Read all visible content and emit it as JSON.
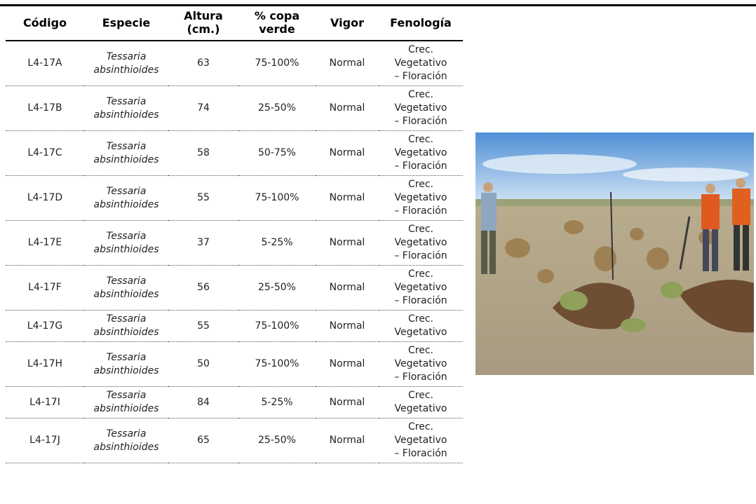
{
  "table": {
    "header": [
      "Código",
      "Especie",
      "Altura\n(cm.)",
      "% copa\nverde",
      "Vigor",
      "Fenología"
    ],
    "rows": [
      [
        "L4-17A",
        "Tessaria\nabsinthioides",
        "63",
        "75-100%",
        "Normal",
        "Crec.\nVegetativo\n– Floración"
      ],
      [
        "L4-17B",
        "Tessaria\nabsinthioides",
        "74",
        "25-50%",
        "Normal",
        "Crec.\nVegetativo\n– Floración"
      ],
      [
        "L4-17C",
        "Tessaria\nabsinthioides",
        "58",
        "50-75%",
        "Normal",
        "Crec.\nVegetativo\n– Floración"
      ],
      [
        "L4-17D",
        "Tessaria\nabsinthioides",
        "55",
        "75-100%",
        "Normal",
        "Crec.\nVegetativo\n– Floración"
      ],
      [
        "L4-17E",
        "Tessaria\nabsinthioides",
        "37",
        "5-25%",
        "Normal",
        "Crec.\nVegetativo\n– Floración"
      ],
      [
        "L4-17F",
        "Tessaria\nabsinthioides",
        "56",
        "25-50%",
        "Normal",
        "Crec.\nVegetativo\n– Floración"
      ],
      [
        "L4-17G",
        "Tessaria\nabsinthioides",
        "55",
        "75-100%",
        "Normal",
        "Crec.\nVegetativo"
      ],
      [
        "L4-17H",
        "Tessaria\nabsinthioides",
        "50",
        "75-100%",
        "Normal",
        "Crec.\nVegetativo\n– Floración"
      ],
      [
        "L4-17I",
        "Tessaria\nabsinthioides",
        "84",
        "5-25%",
        "Normal",
        "Crec.\nVegetativo"
      ],
      [
        "L4-17J",
        "Tessaria\nabsinthioides",
        "65",
        "25-50%",
        "Normal",
        "Crec.\nVegetativo\n– Floración"
      ]
    ]
  }
}
